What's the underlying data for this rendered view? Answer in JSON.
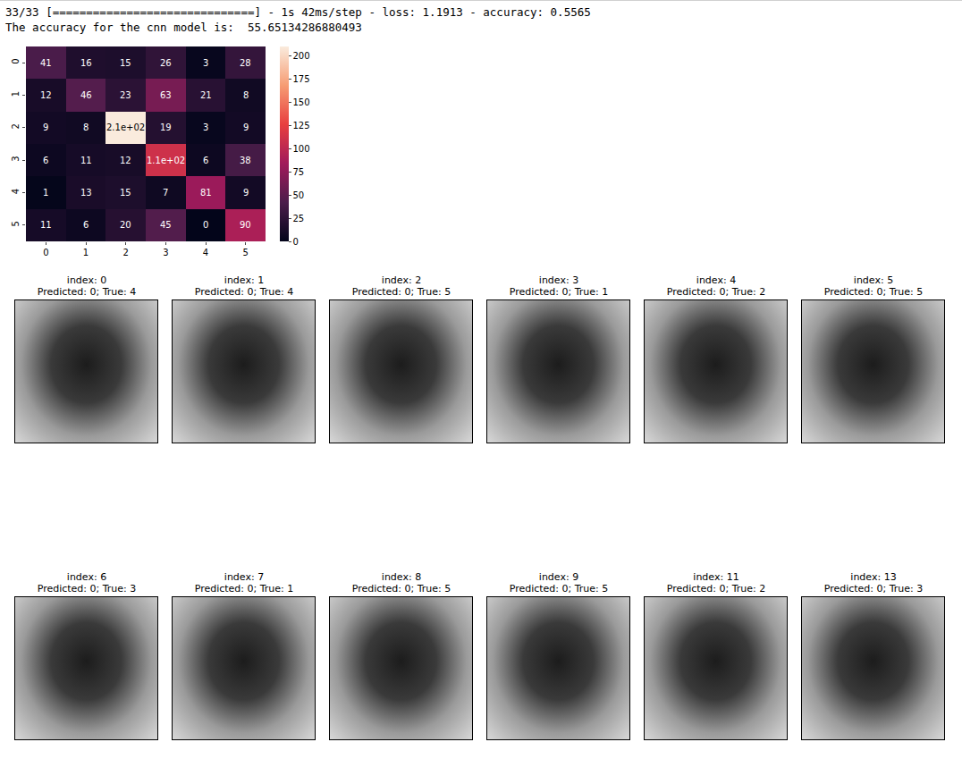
{
  "console": [
    "33/33 [==============================] - 1s 42ms/step - loss: 1.1913 - accuracy: 0.5565",
    "The accuracy for the cnn model is:  55.65134286880493"
  ],
  "chart_data": {
    "type": "heatmap",
    "categories": [
      "0",
      "1",
      "2",
      "3",
      "4",
      "5"
    ],
    "cells": [
      [
        41,
        16,
        15,
        26,
        3,
        28
      ],
      [
        12,
        46,
        23,
        63,
        21,
        8
      ],
      [
        9,
        8,
        210,
        19,
        3,
        9
      ],
      [
        6,
        11,
        12,
        110,
        6,
        38
      ],
      [
        1,
        13,
        15,
        7,
        81,
        9
      ],
      [
        11,
        6,
        20,
        45,
        0,
        90
      ]
    ],
    "value_labels": [
      [
        "41",
        "16",
        "15",
        "26",
        "3",
        "28"
      ],
      [
        "12",
        "46",
        "23",
        "63",
        "21",
        "8"
      ],
      [
        "9",
        "8",
        "2.1e+02",
        "19",
        "3",
        "9"
      ],
      [
        "6",
        "11",
        "12",
        "1.1e+02",
        "6",
        "38"
      ],
      [
        "1",
        "13",
        "15",
        "7",
        "81",
        "9"
      ],
      [
        "11",
        "6",
        "20",
        "45",
        "0",
        "90"
      ]
    ],
    "data_labels": true,
    "colorbar": {
      "range": [
        0,
        210
      ],
      "ticks": [
        0,
        25,
        50,
        75,
        100,
        125,
        150,
        175,
        200
      ]
    }
  },
  "panels": [
    [
      "index: 0",
      "Predicted: 0; True: 4"
    ],
    [
      "index: 1",
      "Predicted: 0; True: 4"
    ],
    [
      "index: 2",
      "Predicted: 0; True: 5"
    ],
    [
      "index: 3",
      "Predicted: 0; True: 1"
    ],
    [
      "index: 4",
      "Predicted: 0; True: 2"
    ],
    [
      "index: 5",
      "Predicted: 0; True: 5"
    ],
    [
      "index: 6",
      "Predicted: 0; True: 3"
    ],
    [
      "index: 7",
      "Predicted: 0; True: 1"
    ],
    [
      "index: 8",
      "Predicted: 0; True: 5"
    ],
    [
      "index: 9",
      "Predicted: 0; True: 5"
    ],
    [
      "index: 11",
      "Predicted: 0; True: 2"
    ],
    [
      "index: 13",
      "Predicted: 0; True: 3"
    ]
  ]
}
